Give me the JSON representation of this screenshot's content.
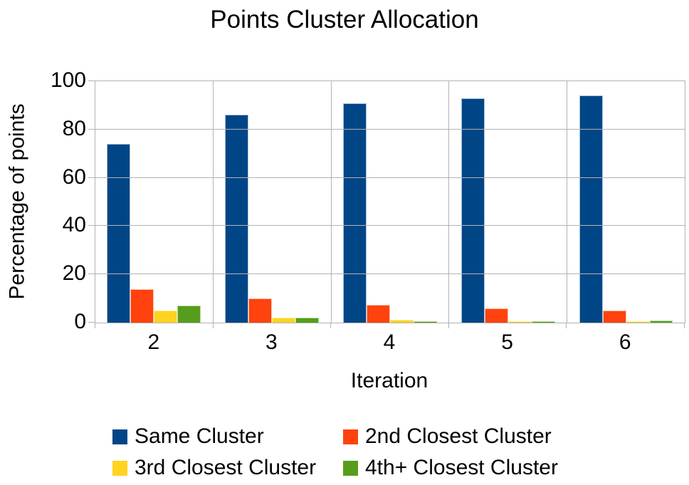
{
  "chart_data": {
    "type": "bar",
    "title": "Points Cluster Allocation",
    "xlabel": "Iteration",
    "ylabel": "Percentage of points",
    "categories": [
      "2",
      "3",
      "4",
      "5",
      "6"
    ],
    "series": [
      {
        "name": "Same Cluster",
        "color": "#004586",
        "border": "#a9c2dc",
        "values": [
          74,
          86,
          91,
          93,
          94
        ]
      },
      {
        "name": "2nd Closest Cluster",
        "color": "#ff420e",
        "border": "#ffc3ab",
        "values": [
          14,
          10,
          7.5,
          6,
          5
        ]
      },
      {
        "name": "3rd Closest Cluster",
        "color": "#ffd320",
        "border": "#ffeda4",
        "values": [
          5,
          2,
          1.2,
          0.6,
          0.5
        ]
      },
      {
        "name": "4th+ Closest Cluster",
        "color": "#579d1c",
        "border": "#bcd8a4",
        "values": [
          7,
          2,
          0.6,
          0.6,
          0.8
        ]
      }
    ],
    "ylim": [
      0,
      100
    ],
    "yticks": [
      0,
      20,
      40,
      60,
      80,
      100
    ],
    "grid": true,
    "legend_position": "bottom",
    "colors": {
      "gridline": "#b3b3b3",
      "text": "#000000",
      "background": "#ffffff"
    }
  }
}
